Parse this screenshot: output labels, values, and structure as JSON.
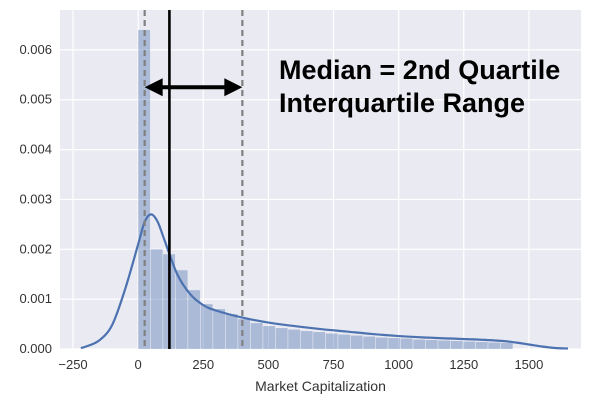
{
  "chart_data": {
    "type": "bar",
    "title": "",
    "xlabel": "Market Capitalization",
    "ylabel": "",
    "xlim": [
      -300,
      1700
    ],
    "ylim": [
      0,
      0.0068
    ],
    "grid": true,
    "x_ticks": [
      -250,
      0,
      250,
      500,
      750,
      1000,
      1250,
      1500
    ],
    "x_tick_labels": [
      "−250",
      "0",
      "250",
      "500",
      "750",
      "1000",
      "1250",
      "1500"
    ],
    "y_ticks": [
      0,
      0.001,
      0.002,
      0.003,
      0.004,
      0.005,
      0.006
    ],
    "y_tick_labels": [
      "0.000",
      "0.001",
      "0.002",
      "0.003",
      "0.004",
      "0.005",
      "0.006"
    ],
    "histogram": {
      "name": "Market Capitalization",
      "bin_edges": [
        0,
        48,
        96,
        144,
        192,
        240,
        288,
        336,
        384,
        432,
        480,
        528,
        576,
        624,
        672,
        720,
        768,
        816,
        864,
        912,
        960,
        1008,
        1056,
        1104,
        1152,
        1200,
        1248,
        1296,
        1344,
        1392,
        1440
      ],
      "values": [
        0.0064,
        0.002,
        0.0019,
        0.00158,
        0.00118,
        0.0009,
        0.0008,
        0.0007,
        0.0006,
        0.00052,
        0.00046,
        0.00042,
        0.00039,
        0.00036,
        0.00034,
        0.00031,
        0.00029,
        0.00027,
        0.00025,
        0.00023,
        0.00022,
        0.00021,
        0.00019,
        0.00018,
        0.00017,
        0.00016,
        0.00015,
        0.00014,
        0.00013,
        0.00012
      ]
    },
    "kde": {
      "name": "density",
      "x": [
        -220,
        -200,
        -150,
        -100,
        -50,
        0,
        25,
        50,
        75,
        100,
        150,
        200,
        250,
        300,
        400,
        500,
        600,
        700,
        800,
        900,
        1000,
        1100,
        1200,
        1300,
        1400,
        1450,
        1500,
        1550,
        1600,
        1650
      ],
      "y": [
        2e-05,
        5e-05,
        0.00017,
        0.00048,
        0.0012,
        0.0021,
        0.00255,
        0.0027,
        0.00255,
        0.0022,
        0.0015,
        0.0011,
        0.00088,
        0.00077,
        0.00063,
        0.00053,
        0.00046,
        0.0004,
        0.00035,
        0.0003,
        0.00026,
        0.00023,
        0.00021,
        0.00019,
        0.00016,
        0.00013,
        9e-05,
        5e-05,
        2e-05,
        1e-05
      ]
    },
    "vertical_lines": [
      {
        "name": "first-quartile",
        "x": 25,
        "style": "dashed"
      },
      {
        "name": "median",
        "x": 120,
        "style": "solid"
      },
      {
        "name": "third-quartile",
        "x": 400,
        "style": "dashed"
      }
    ],
    "range_arrow": {
      "x_start": 25,
      "x_end": 400,
      "y": 0.00525
    },
    "annotations": [
      "Median = 2nd Quartile",
      "Interquartile Range"
    ],
    "colors": {
      "background": "#EAEAF2",
      "grid": "#FFFFFF",
      "bars": "#4C72B0",
      "kde": "#4C72B0",
      "median": "#000000",
      "quartiles": "#808080"
    }
  }
}
